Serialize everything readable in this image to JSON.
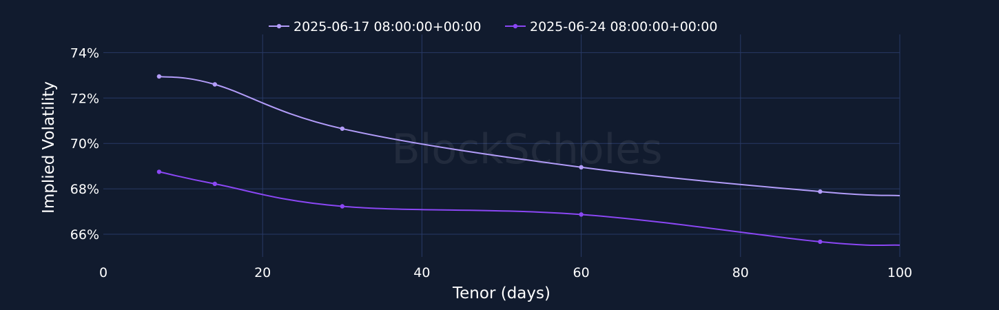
{
  "chart_data": {
    "type": "line",
    "xlabel": "Tenor (days)",
    "ylabel": "Implied Volatility",
    "xlim": [
      0,
      100
    ],
    "ylim": [
      65.0,
      74.8
    ],
    "x_ticks": [
      0,
      20,
      40,
      60,
      80,
      100
    ],
    "y_ticks": [
      66,
      68,
      70,
      72,
      74
    ],
    "y_tick_suffix": "%",
    "grid": true,
    "legend_position": "top-center",
    "watermark": "BlockScholes",
    "series": [
      {
        "name": "2025-06-17 08:00:00+00:00",
        "color": "#b39dfa",
        "x": [
          7,
          14,
          30,
          60,
          90,
          100
        ],
        "y": [
          72.95,
          72.6,
          70.65,
          68.95,
          67.88,
          67.7
        ]
      },
      {
        "name": "2025-06-24 08:00:00+00:00",
        "color": "#8b47f5",
        "x": [
          7,
          14,
          30,
          60,
          90,
          100
        ],
        "y": [
          68.75,
          68.22,
          67.23,
          66.87,
          65.67,
          65.52
        ]
      }
    ]
  }
}
